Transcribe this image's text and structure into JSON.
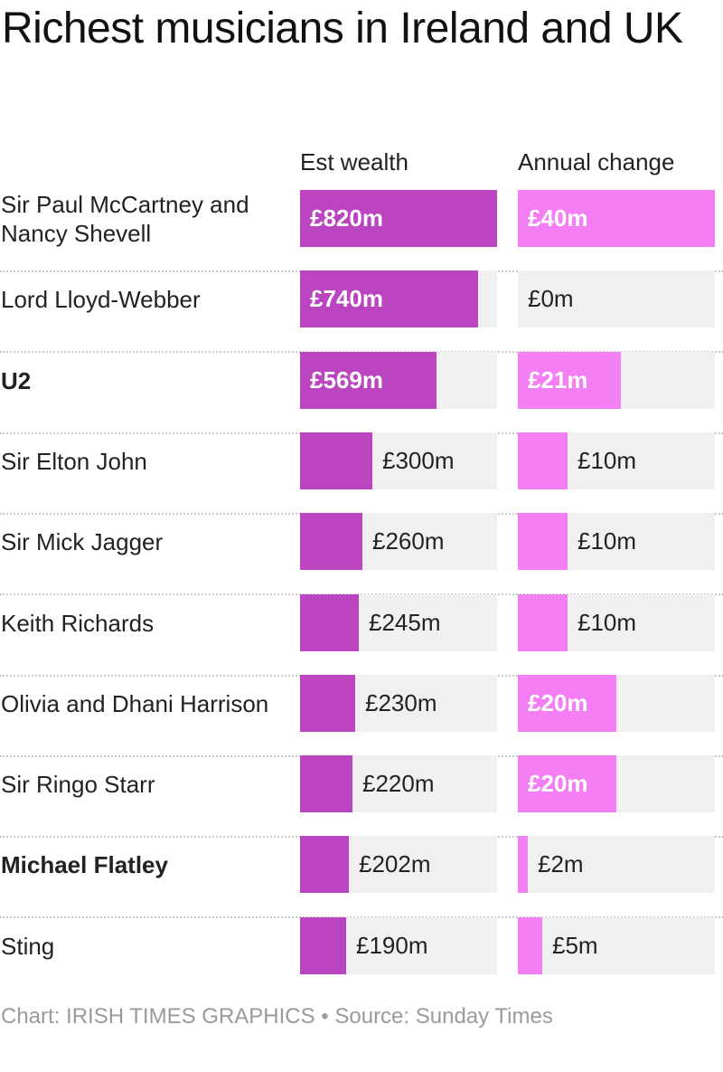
{
  "title": "Richest musicians in Ireland and UK",
  "footer": "Chart: IRISH TIMES GRAPHICS • Source: Sunday Times",
  "colors": {
    "wealth_bar": "#bb44c0",
    "change_bar": "#f47ff5",
    "track": "#f0f0f0"
  },
  "chart_data": {
    "type": "bar",
    "orientation": "horizontal",
    "columns": [
      "Est wealth",
      "Annual change"
    ],
    "categories": [
      "Sir Paul McCartney and Nancy Shevell",
      "Lord Lloyd-Webber",
      "U2",
      "Sir Elton John",
      "Sir Mick Jagger",
      "Keith Richards",
      "Olivia and Dhani Harrison",
      "Sir Ringo Starr",
      "Michael Flatley",
      "Sting"
    ],
    "bold_categories": [
      "U2",
      "Michael Flatley"
    ],
    "series": [
      {
        "values": [
          820,
          740,
          569,
          300,
          260,
          245,
          230,
          220,
          202,
          190
        ],
        "labels": [
          "£820m",
          "£740m",
          "£569m",
          "£300m",
          "£260m",
          "£245m",
          "£230m",
          "£220m",
          "£202m",
          "£190m"
        ],
        "max": 820
      },
      {
        "values": [
          40,
          0,
          21,
          10,
          10,
          10,
          20,
          20,
          2,
          5
        ],
        "labels": [
          "£40m",
          "£0m",
          "£21m",
          "£10m",
          "£10m",
          "£10m",
          "£20m",
          "£20m",
          "£2m",
          "£5m"
        ],
        "max": 40
      }
    ],
    "unit": "£m"
  }
}
